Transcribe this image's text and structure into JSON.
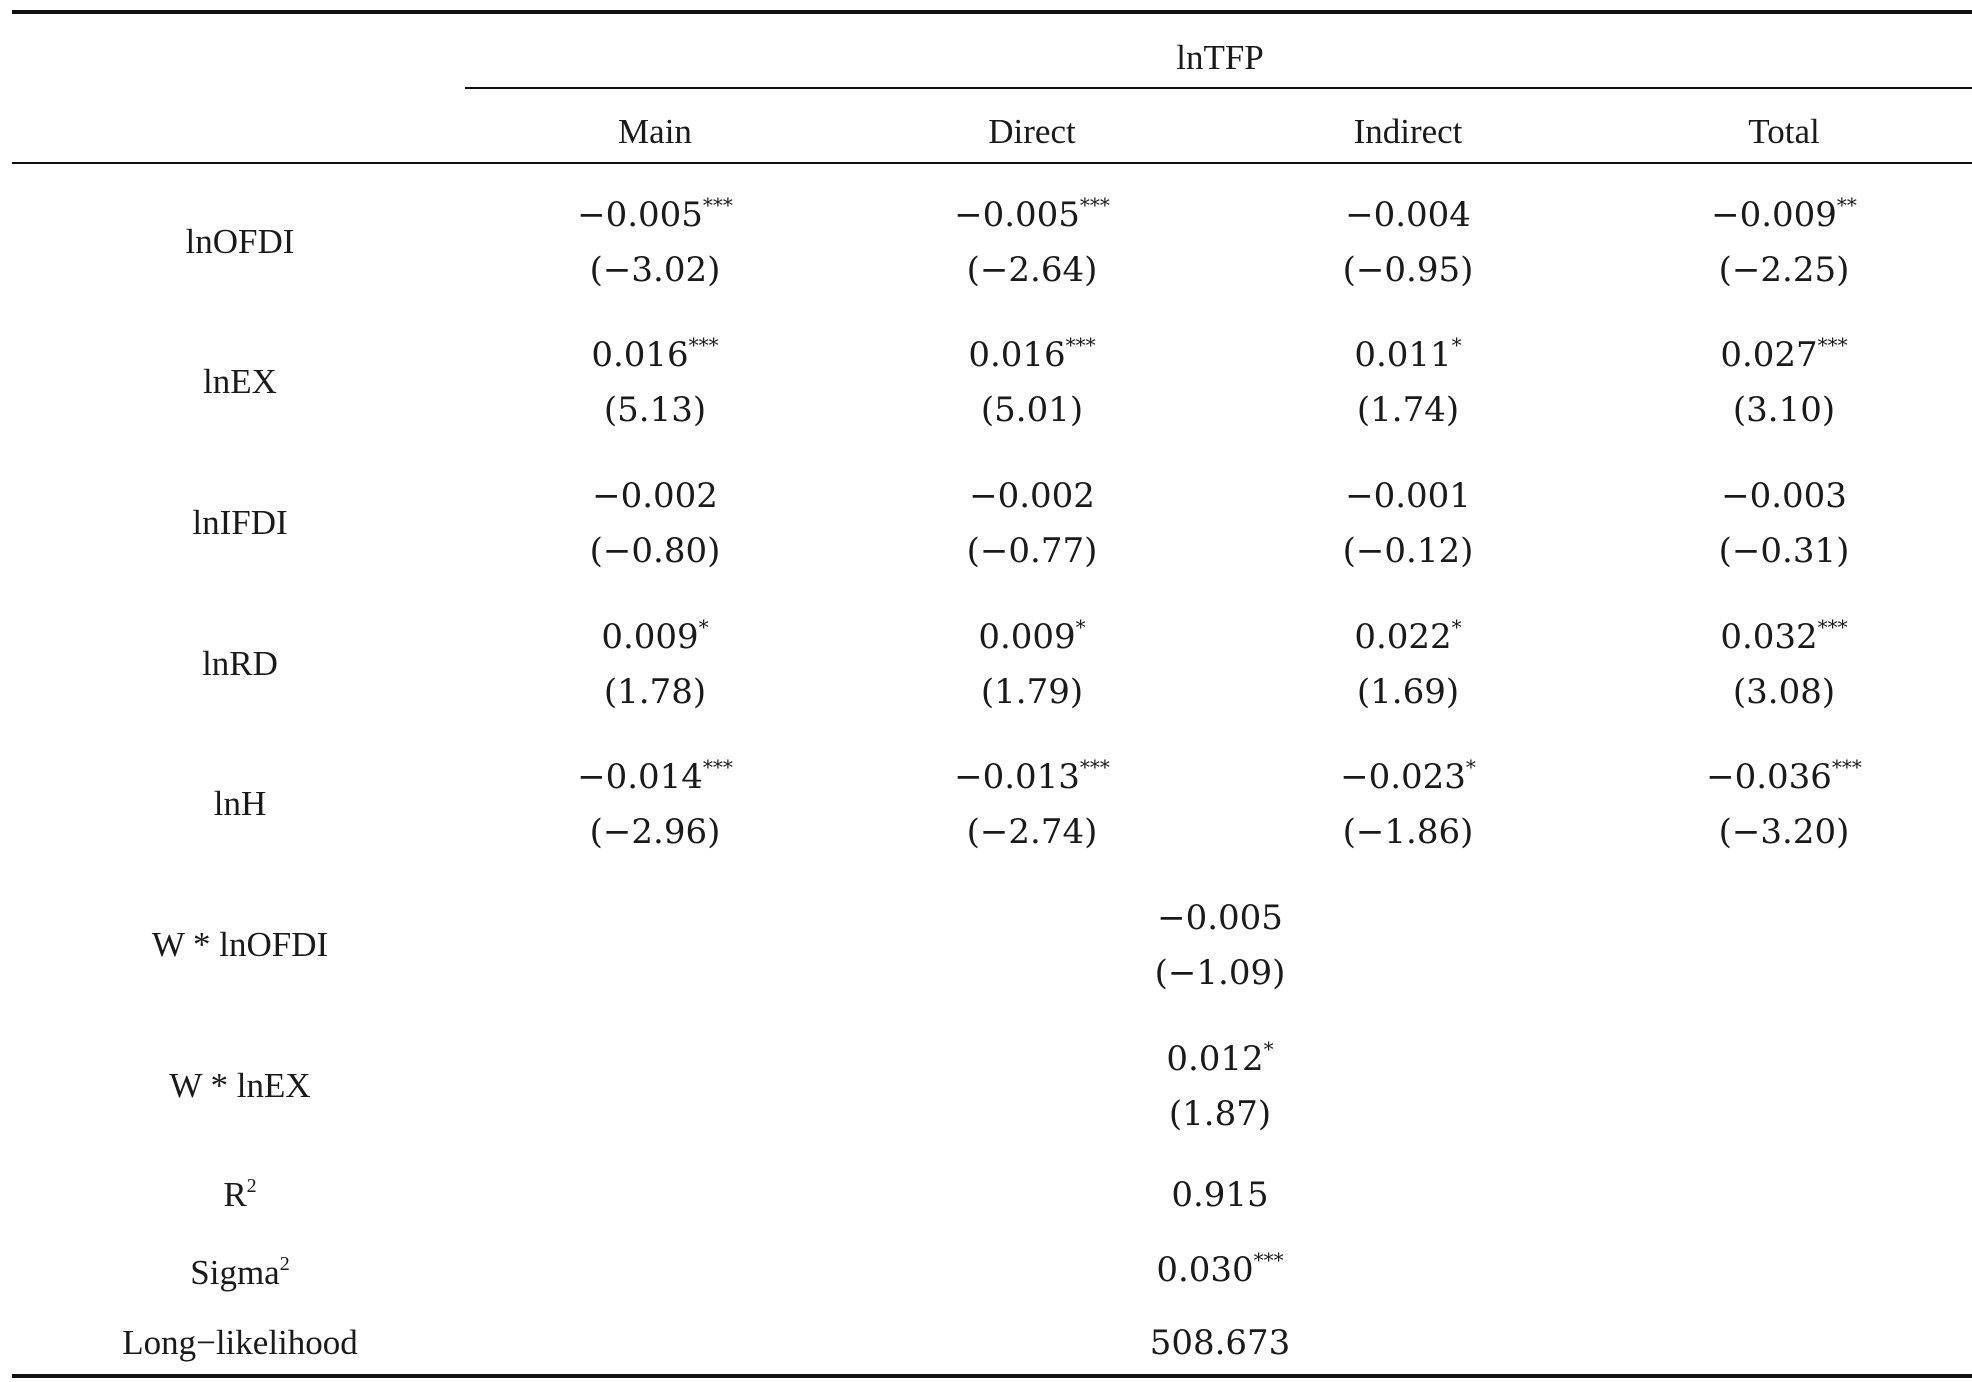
{
  "header": {
    "group_label": "lnTFP",
    "columns": [
      "Main",
      "Direct",
      "Indirect",
      "Total"
    ]
  },
  "rows": [
    {
      "label": "lnOFDI",
      "cells": [
        {
          "coef": "−0.005",
          "stars": "***",
          "t": "(−3.02)"
        },
        {
          "coef": "−0.005",
          "stars": "***",
          "t": "(−2.64)"
        },
        {
          "coef": "−0.004",
          "stars": "",
          "t": "(−0.95)"
        },
        {
          "coef": "−0.009",
          "stars": "**",
          "t": "(−2.25)"
        }
      ]
    },
    {
      "label": "lnEX",
      "cells": [
        {
          "coef": "0.016",
          "stars": "***",
          "t": "(5.13)"
        },
        {
          "coef": "0.016",
          "stars": "***",
          "t": "(5.01)"
        },
        {
          "coef": "0.011",
          "stars": "*",
          "t": "(1.74)"
        },
        {
          "coef": "0.027",
          "stars": "***",
          "t": "(3.10)"
        }
      ]
    },
    {
      "label": "lnIFDI",
      "cells": [
        {
          "coef": "−0.002",
          "stars": "",
          "t": "(−0.80)"
        },
        {
          "coef": "−0.002",
          "stars": "",
          "t": "(−0.77)"
        },
        {
          "coef": "−0.001",
          "stars": "",
          "t": "(−0.12)"
        },
        {
          "coef": "−0.003",
          "stars": "",
          "t": "(−0.31)"
        }
      ]
    },
    {
      "label": "lnRD",
      "cells": [
        {
          "coef": "0.009",
          "stars": "*",
          "t": "(1.78)"
        },
        {
          "coef": "0.009",
          "stars": "*",
          "t": "(1.79)"
        },
        {
          "coef": "0.022",
          "stars": "*",
          "t": "(1.69)"
        },
        {
          "coef": "0.032",
          "stars": "***",
          "t": "(3.08)"
        }
      ]
    },
    {
      "label": "lnH",
      "cells": [
        {
          "coef": "−0.014",
          "stars": "***",
          "t": "(−2.96)"
        },
        {
          "coef": "−0.013",
          "stars": "***",
          "t": "(−2.74)"
        },
        {
          "coef": "−0.023",
          "stars": "*",
          "t": "(−1.86)"
        },
        {
          "coef": "−0.036",
          "stars": "***",
          "t": "(−3.20)"
        }
      ]
    }
  ],
  "spatial_rows": [
    {
      "label": "W * lnOFDI",
      "coef": "−0.005",
      "stars": "",
      "t": "(−1.09)"
    },
    {
      "label": "W * lnEX",
      "coef": "0.012",
      "stars": "*",
      "t": "(1.87)"
    }
  ],
  "stats": {
    "r2_label": "R",
    "r2_sup": "2",
    "r2_value": "0.915",
    "sigma_label": "Sigma",
    "sigma_sup": "2",
    "sigma_value": "0.030",
    "sigma_stars": "***",
    "ll_label": "Long−likelihood",
    "ll_value": "508.673"
  }
}
